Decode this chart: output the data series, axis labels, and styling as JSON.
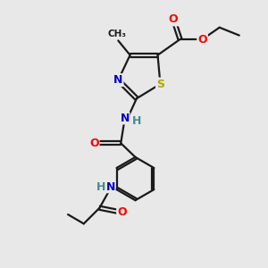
{
  "background_color": "#e8e8e8",
  "bond_color": "#1a1a1a",
  "atom_colors": {
    "O": "#ff0000",
    "N": "#0000cc",
    "S": "#aaaa00",
    "H": "#4a8a8a",
    "C": "#1a1a1a"
  },
  "figsize": [
    3.0,
    3.0
  ],
  "dpi": 100
}
